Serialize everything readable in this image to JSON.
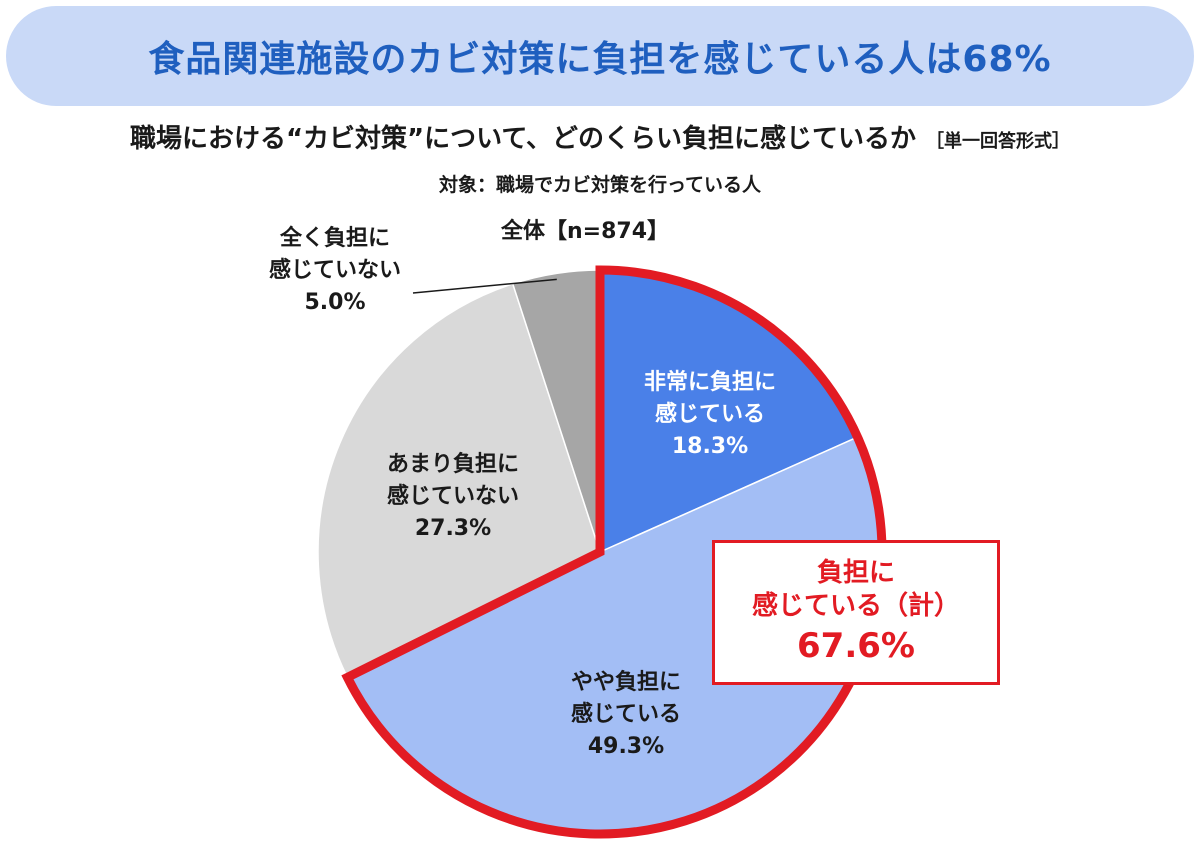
{
  "header": {
    "title": "食品関連施設のカビ対策に負担を感じている人は68%"
  },
  "question": {
    "text": "職場における“カビ対策”について、どのくらい負担に感じているか",
    "format": "［単一回答形式］"
  },
  "target": "対象：職場でカビ対策を行っている人",
  "chart_data": {
    "type": "pie",
    "title": "全体【n=874】",
    "start_angle_deg": 0,
    "direction": "clockwise",
    "slices": [
      {
        "label_lines": [
          "非常に負担に",
          "感じている"
        ],
        "value": 18.3,
        "value_text": "18.3%",
        "color": "#4a80e8",
        "label_color": "#ffffff"
      },
      {
        "label_lines": [
          "やや負担に",
          "感じている"
        ],
        "value": 49.3,
        "value_text": "49.3%",
        "color": "#a3bef5",
        "label_color": "#1a1a1a"
      },
      {
        "label_lines": [
          "あまり負担に",
          "感じていない"
        ],
        "value": 27.3,
        "value_text": "27.3%",
        "color": "#d9d9d9",
        "label_color": "#1a1a1a"
      },
      {
        "label_lines": [
          "全く負担に",
          "感じていない"
        ],
        "value": 5.0,
        "value_text": "5.0%",
        "color": "#a6a6a6",
        "label_color": "#1a1a1a"
      }
    ],
    "highlight": {
      "color": "#e21b23",
      "label_lines": [
        "負担に",
        "感じている（計）"
      ],
      "value": 67.6,
      "value_text": "67.6%"
    }
  }
}
